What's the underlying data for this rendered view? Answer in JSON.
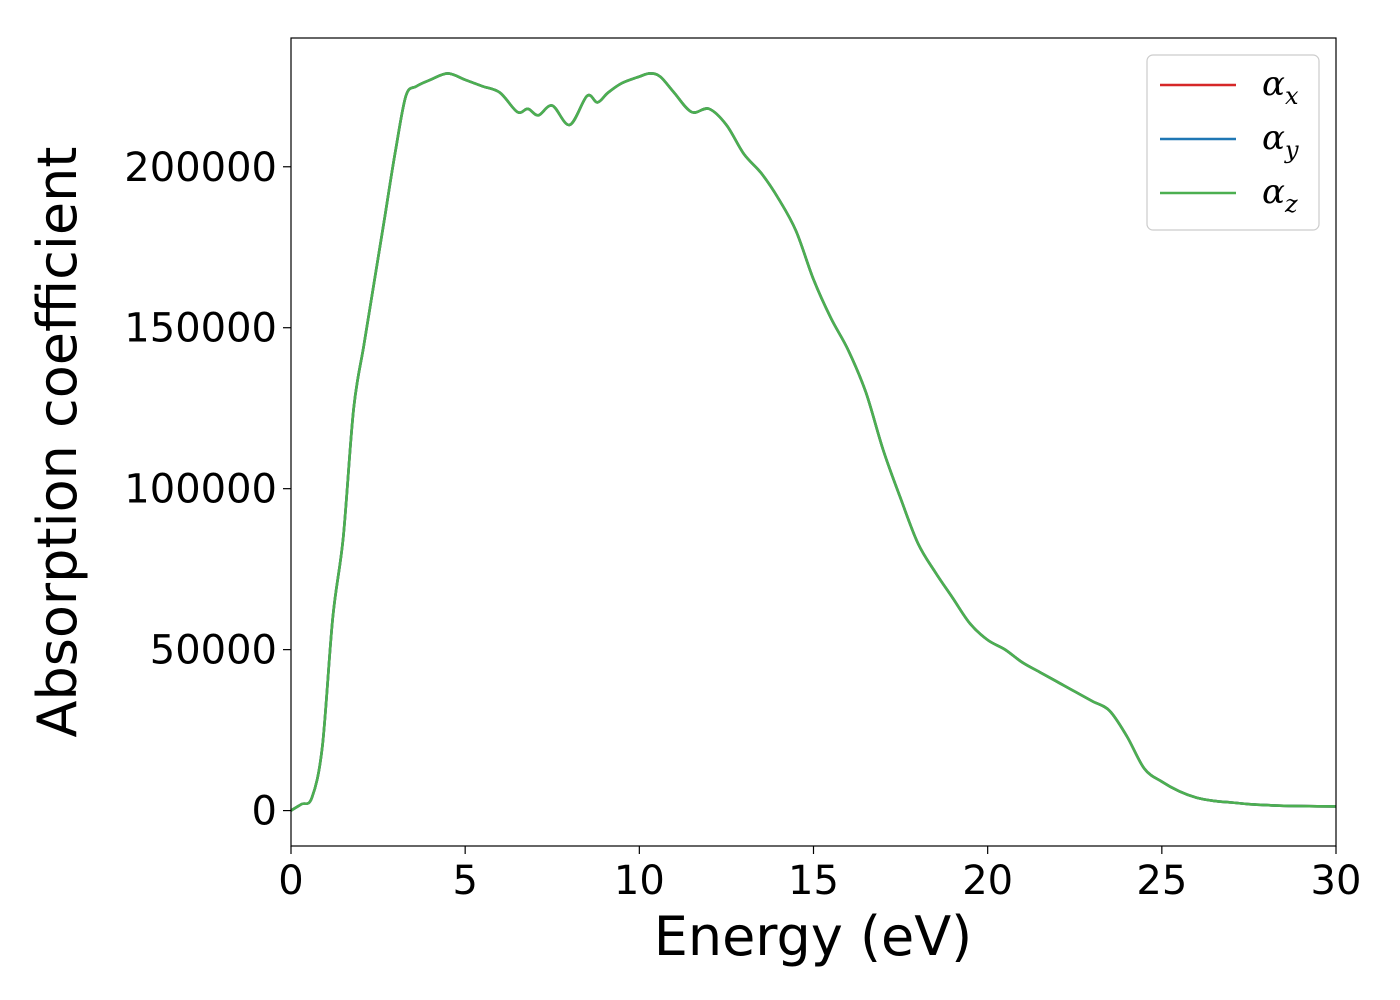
{
  "chart_data": {
    "type": "line",
    "xlabel": "Energy (eV)",
    "ylabel": "Absorption coefficient",
    "xlim": [
      0,
      30
    ],
    "ylim": [
      -11000,
      240000
    ],
    "xticks": [
      0,
      5,
      10,
      15,
      20,
      25,
      30
    ],
    "yticks": [
      0,
      50000,
      100000,
      150000,
      200000
    ],
    "grid": false,
    "legend": {
      "placement": "top-right",
      "entries": [
        {
          "symbol": "α",
          "sub": "x",
          "color": "#d62728"
        },
        {
          "symbol": "α",
          "sub": "y",
          "color": "#1f77b4"
        },
        {
          "symbol": "α",
          "sub": "z",
          "color": "#4caf50"
        }
      ]
    },
    "x": [
      0,
      0.3,
      0.6,
      0.9,
      1.2,
      1.5,
      1.8,
      2.1,
      2.4,
      2.7,
      3.0,
      3.3,
      3.6,
      4.0,
      4.5,
      5.0,
      5.5,
      6.0,
      6.5,
      6.8,
      7.1,
      7.5,
      8.0,
      8.5,
      8.8,
      9.1,
      9.5,
      10.0,
      10.3,
      10.6,
      11.0,
      11.5,
      12.0,
      12.5,
      13.0,
      13.5,
      14.0,
      14.5,
      15.0,
      15.5,
      16.0,
      16.5,
      17.0,
      17.5,
      18.0,
      18.5,
      19.0,
      19.5,
      20.0,
      20.5,
      21.0,
      21.5,
      22.0,
      22.5,
      23.0,
      23.5,
      24.0,
      24.5,
      25.0,
      25.5,
      26.0,
      26.5,
      27.0,
      27.5,
      28.0,
      28.5,
      29.0,
      30.0
    ],
    "series": [
      {
        "values": [
          0,
          2000,
          4000,
          20000,
          60000,
          85000,
          125000,
          145000,
          165000,
          185000,
          205000,
          222000,
          225000,
          227000,
          229000,
          227000,
          225000,
          223000,
          217000,
          218000,
          216000,
          219000,
          213000,
          222000,
          220000,
          223000,
          226000,
          228000,
          229000,
          228000,
          223000,
          217000,
          218000,
          213000,
          204000,
          198000,
          190000,
          180000,
          165000,
          153000,
          143000,
          130000,
          112000,
          97000,
          83000,
          74000,
          66000,
          58000,
          53000,
          50000,
          46000,
          43000,
          40000,
          37000,
          34000,
          31000,
          23000,
          13000,
          9000,
          6000,
          4000,
          3000,
          2500,
          2000,
          1700,
          1500,
          1400,
          1300
        ]
      },
      {
        "values": [
          0,
          2000,
          4000,
          20000,
          60000,
          85000,
          125000,
          145000,
          165000,
          185000,
          205000,
          222000,
          225000,
          227000,
          229000,
          227000,
          225000,
          223000,
          217000,
          218000,
          216000,
          219000,
          213000,
          222000,
          220000,
          223000,
          226000,
          228000,
          229000,
          228000,
          223000,
          217000,
          218000,
          213000,
          204000,
          198000,
          190000,
          180000,
          165000,
          153000,
          143000,
          130000,
          112000,
          97000,
          83000,
          74000,
          66000,
          58000,
          53000,
          50000,
          46000,
          43000,
          40000,
          37000,
          34000,
          31000,
          23000,
          13000,
          9000,
          6000,
          4000,
          3000,
          2500,
          2000,
          1700,
          1500,
          1400,
          1300
        ]
      },
      {
        "values": [
          0,
          2000,
          4000,
          20000,
          60000,
          85000,
          125000,
          145000,
          165000,
          185000,
          205000,
          222000,
          225000,
          227000,
          229000,
          227000,
          225000,
          223000,
          217000,
          218000,
          216000,
          219000,
          213000,
          222000,
          220000,
          223000,
          226000,
          228000,
          229000,
          228000,
          223000,
          217000,
          218000,
          213000,
          204000,
          198000,
          190000,
          180000,
          165000,
          153000,
          143000,
          130000,
          112000,
          97000,
          83000,
          74000,
          66000,
          58000,
          53000,
          50000,
          46000,
          43000,
          40000,
          37000,
          34000,
          31000,
          23000,
          13000,
          9000,
          6000,
          4000,
          3000,
          2500,
          2000,
          1700,
          1500,
          1400,
          1300
        ]
      }
    ]
  }
}
